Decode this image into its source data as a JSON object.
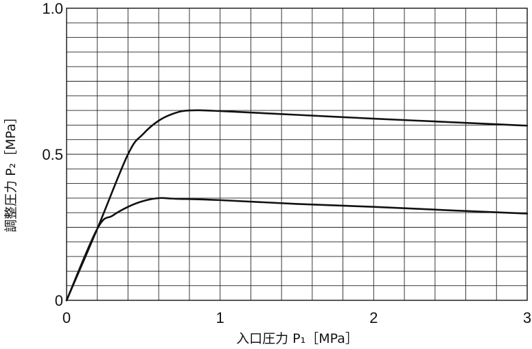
{
  "chart_data": {
    "type": "line",
    "title": "",
    "xlabel": "入口圧力 P₁［MPa］",
    "ylabel": "調整圧力 P₂［MPa］",
    "xlim": [
      0,
      3
    ],
    "ylim": [
      0,
      1.0
    ],
    "x_ticks": [
      "0",
      "1",
      "2",
      "3"
    ],
    "y_ticks": [
      "0",
      "0.5",
      "1.0"
    ],
    "grid": true,
    "x_minor_step": 0.2,
    "y_minor_step": 0.05,
    "series": [
      {
        "points": [
          [
            0,
            0
          ],
          [
            0.2,
            0.245
          ],
          [
            0.4,
            0.5
          ],
          [
            0.5,
            0.57
          ],
          [
            0.6,
            0.615
          ],
          [
            0.7,
            0.64
          ],
          [
            0.8,
            0.65
          ],
          [
            1.0,
            0.648
          ],
          [
            1.5,
            0.635
          ],
          [
            2.0,
            0.622
          ],
          [
            2.5,
            0.61
          ],
          [
            3.0,
            0.598
          ]
        ]
      },
      {
        "points": [
          [
            0,
            0
          ],
          [
            0.2,
            0.245
          ],
          [
            0.3,
            0.29
          ],
          [
            0.4,
            0.32
          ],
          [
            0.5,
            0.34
          ],
          [
            0.6,
            0.35
          ],
          [
            0.7,
            0.348
          ],
          [
            1.0,
            0.343
          ],
          [
            1.5,
            0.33
          ],
          [
            2.0,
            0.32
          ],
          [
            2.5,
            0.308
          ],
          [
            3.0,
            0.297
          ]
        ]
      }
    ]
  }
}
